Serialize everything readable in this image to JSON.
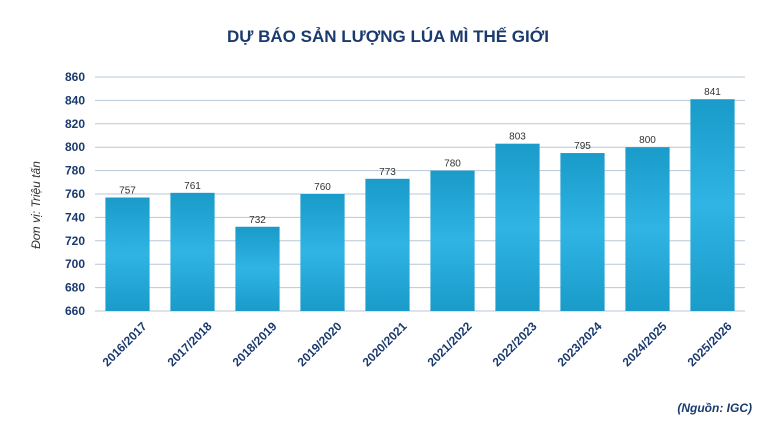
{
  "chart_data": {
    "type": "bar",
    "title": "DỰ BÁO SẢN LƯỢNG LÚA MÌ THẾ GIỚI",
    "ylabel": "Đơn vị: Triệu tấn",
    "xlabel": "",
    "source": "(Nguồn: IGC)",
    "categories": [
      "2016/2017",
      "2017/2018",
      "2018/2019",
      "2019/2020",
      "2020/2021",
      "2021/2022",
      "2022/2023",
      "2023/2024",
      "2024/2025",
      "2025/2026"
    ],
    "values": [
      757,
      761,
      732,
      760,
      773,
      780,
      803,
      795,
      800,
      841
    ],
    "ylim": [
      660,
      860
    ],
    "yticks": [
      660,
      680,
      700,
      720,
      740,
      760,
      780,
      800,
      820,
      840,
      860
    ],
    "grid": true,
    "colors": {
      "bar_top": "#1a9bc9",
      "bar_mid": "#2fb4e4",
      "bar_bottom": "#1a9bc9",
      "text": "#1a3a6e"
    }
  }
}
